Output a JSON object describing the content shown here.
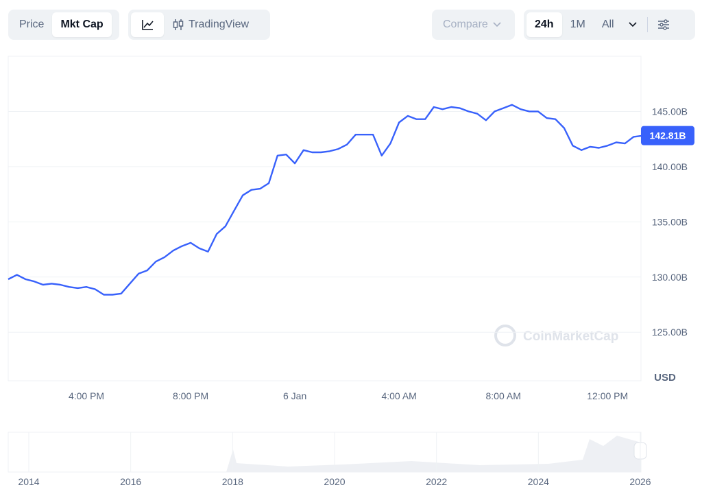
{
  "toolbar": {
    "price": "Price",
    "mkt_cap": "Mkt Cap",
    "tradingview": "TradingView",
    "compare": "Compare",
    "range_24h": "24h",
    "range_1m": "1M",
    "range_all": "All"
  },
  "chart_data": {
    "type": "line",
    "color": "#3861fb",
    "grid": true,
    "y_unit": "USD",
    "watermark": "CoinMarketCap",
    "categories": [
      null,
      null,
      null,
      null,
      null,
      null,
      null,
      null,
      null,
      "4:00 PM",
      null,
      null,
      null,
      null,
      null,
      null,
      null,
      null,
      null,
      null,
      null,
      "8:00 PM",
      null,
      null,
      null,
      null,
      null,
      null,
      null,
      null,
      null,
      null,
      null,
      "6 Jan",
      null,
      null,
      null,
      null,
      null,
      null,
      null,
      null,
      null,
      null,
      null,
      "4:00 AM",
      null,
      null,
      null,
      null,
      null,
      null,
      null,
      null,
      null,
      null,
      null,
      "8:00 AM",
      null,
      null,
      null,
      null,
      null,
      null,
      null,
      null,
      null,
      null,
      null,
      "12:00 PM",
      null,
      null,
      null,
      null
    ],
    "values": [
      129.8,
      130.2,
      129.8,
      129.6,
      129.3,
      129.4,
      129.3,
      129.1,
      129.0,
      129.1,
      128.9,
      128.4,
      128.4,
      128.5,
      129.4,
      130.3,
      130.6,
      131.4,
      131.8,
      132.4,
      132.8,
      133.1,
      132.6,
      132.3,
      133.9,
      134.6,
      136.0,
      137.4,
      137.9,
      138.0,
      138.5,
      141.0,
      141.1,
      140.3,
      141.5,
      141.3,
      141.3,
      141.4,
      141.6,
      142.0,
      142.9,
      142.9,
      142.9,
      141.0,
      142.1,
      144.0,
      144.6,
      144.3,
      144.3,
      145.4,
      145.2,
      145.4,
      145.3,
      145.0,
      144.8,
      144.2,
      145.0,
      145.3,
      145.6,
      145.2,
      145.0,
      145.0,
      144.4,
      144.3,
      143.5,
      141.9,
      141.5,
      141.8,
      141.7,
      141.9,
      142.2,
      142.1,
      142.7,
      142.8
    ],
    "ylim": [
      120.6,
      150
    ],
    "yticks": [
      {
        "value": 125,
        "label": "125.00B"
      },
      {
        "value": 130,
        "label": "130.00B"
      },
      {
        "value": 135,
        "label": "135.00B"
      },
      {
        "value": 140,
        "label": "140.00B"
      },
      {
        "value": 145,
        "label": "145.00B"
      }
    ],
    "current_value": {
      "value": 142.81,
      "label": "142.81B"
    }
  },
  "navigator": {
    "labels": [
      "2014",
      "2016",
      "2018",
      "2020",
      "2022",
      "2024",
      "2026"
    ]
  }
}
